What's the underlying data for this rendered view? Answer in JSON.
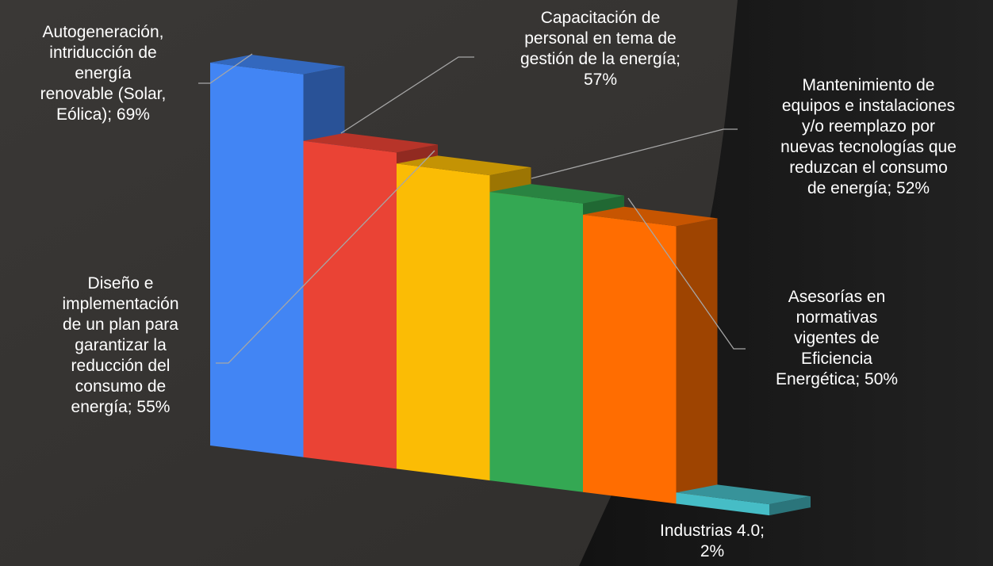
{
  "chart_data": {
    "type": "bar",
    "title": "",
    "xlabel": "",
    "ylabel": "",
    "categories": [
      "Autogeneración, intriducción de energía renovable (Solar, Eólica)",
      "Capacitación de personal en tema de gestión de la energía",
      "Diseño e implementación de un plan para garantizar la reducción del consumo de energía",
      "Mantenimiento de equipos e instalaciones y/o reemplazo por nuevas tecnologías que reduzcan el consumo de energía",
      "Asesorías en normativas vigentes de Eficiencia Energética",
      "Industrias 4.0"
    ],
    "values": [
      69,
      57,
      55,
      52,
      50,
      2
    ],
    "unit": "%",
    "colors": [
      "#4285f4",
      "#ea4335",
      "#fbbc05",
      "#34a853",
      "#ff6d01",
      "#46bdc6"
    ],
    "label_lines": [
      [
        "Autogeneración,",
        "intriducción de",
        "energía",
        "renovable (Solar,",
        "Eólica); 69%"
      ],
      [
        "Capacitación de",
        "personal en tema de",
        "gestión de la energía;",
        "57%"
      ],
      [
        "Diseño e",
        "implementación",
        "de un plan para",
        "garantizar la",
        "reducción del",
        "consumo de",
        "energía; 55%"
      ],
      [
        "Mantenimiento de",
        "equipos e instalaciones",
        "y/o reemplazo por",
        "nuevas tecnologías que",
        "reduzcan el consumo",
        "de energía; 52%"
      ],
      [
        "Asesorías en",
        "normativas",
        "vigentes de",
        "Eficiencia",
        "Energética; 50%"
      ],
      [
        "Industrias 4.0;",
        "2%"
      ]
    ],
    "grid": false,
    "legend": "none",
    "view": "3d-perspective"
  }
}
